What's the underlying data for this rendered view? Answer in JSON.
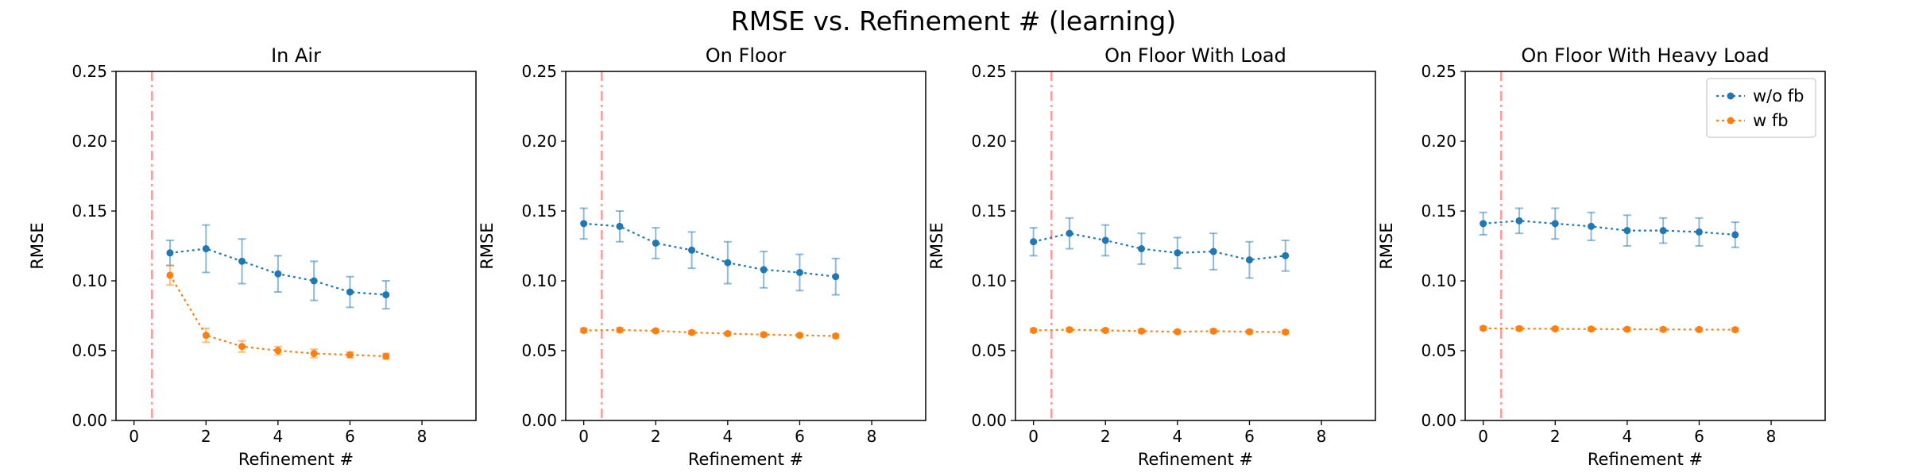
{
  "figure": {
    "title": "RMSE vs. Refinement # (learning)"
  },
  "colors": {
    "series": [
      "#1f77b4",
      "#ff7f0e"
    ],
    "vline": "#ff9999",
    "axes": "#000000"
  },
  "chart_data": [
    {
      "type": "line",
      "title": "In Air",
      "xlabel": "Refinement #",
      "ylabel": "RMSE",
      "xlim": [
        -0.5,
        9.5
      ],
      "ylim": [
        0,
        0.25
      ],
      "xticks": [
        0,
        2,
        4,
        6,
        8
      ],
      "yticks": [
        0.0,
        0.05,
        0.1,
        0.15,
        0.2,
        0.25
      ],
      "ytick_labels": [
        "0.00",
        "0.05",
        "0.10",
        "0.15",
        "0.20",
        "0.25"
      ],
      "vline_x": 0.5,
      "legend": false,
      "series": [
        {
          "name": "w/o fb",
          "x": [
            1,
            2,
            3,
            4,
            5,
            6,
            7
          ],
          "y": [
            0.12,
            0.123,
            0.114,
            0.105,
            0.1,
            0.092,
            0.09
          ],
          "err": [
            0.009,
            0.017,
            0.016,
            0.013,
            0.014,
            0.011,
            0.01
          ]
        },
        {
          "name": "w fb",
          "x": [
            1,
            2,
            3,
            4,
            5,
            6,
            7
          ],
          "y": [
            0.104,
            0.061,
            0.053,
            0.05,
            0.048,
            0.047,
            0.046
          ],
          "err": [
            0.007,
            0.005,
            0.004,
            0.003,
            0.003,
            0.002,
            0.002
          ]
        }
      ]
    },
    {
      "type": "line",
      "title": "On Floor",
      "xlabel": "Refinement #",
      "ylabel": "RMSE",
      "xlim": [
        -0.5,
        9.5
      ],
      "ylim": [
        0,
        0.25
      ],
      "xticks": [
        0,
        2,
        4,
        6,
        8
      ],
      "yticks": [
        0.0,
        0.05,
        0.1,
        0.15,
        0.2,
        0.25
      ],
      "ytick_labels": [
        "0.00",
        "0.05",
        "0.10",
        "0.15",
        "0.20",
        "0.25"
      ],
      "vline_x": 0.5,
      "legend": false,
      "series": [
        {
          "name": "w/o fb",
          "x": [
            0,
            1,
            2,
            3,
            4,
            5,
            6,
            7
          ],
          "y": [
            0.141,
            0.139,
            0.127,
            0.122,
            0.113,
            0.108,
            0.106,
            0.103
          ],
          "err": [
            0.011,
            0.011,
            0.011,
            0.013,
            0.015,
            0.013,
            0.013,
            0.013
          ]
        },
        {
          "name": "w fb",
          "x": [
            0,
            1,
            2,
            3,
            4,
            5,
            6,
            7
          ],
          "y": [
            0.0645,
            0.0648,
            0.0642,
            0.063,
            0.0622,
            0.0615,
            0.061,
            0.0605
          ],
          "err": [
            0.0015,
            0.0015,
            0.0012,
            0.0012,
            0.0012,
            0.0012,
            0.0012,
            0.0012
          ]
        }
      ]
    },
    {
      "type": "line",
      "title": "On Floor With Load",
      "xlabel": "Refinement #",
      "ylabel": "RMSE",
      "xlim": [
        -0.5,
        9.5
      ],
      "ylim": [
        0,
        0.25
      ],
      "xticks": [
        0,
        2,
        4,
        6,
        8
      ],
      "yticks": [
        0.0,
        0.05,
        0.1,
        0.15,
        0.2,
        0.25
      ],
      "ytick_labels": [
        "0.00",
        "0.05",
        "0.10",
        "0.15",
        "0.20",
        "0.25"
      ],
      "vline_x": 0.5,
      "legend": false,
      "series": [
        {
          "name": "w/o fb",
          "x": [
            0,
            1,
            2,
            3,
            4,
            5,
            6,
            7
          ],
          "y": [
            0.128,
            0.134,
            0.129,
            0.123,
            0.12,
            0.121,
            0.115,
            0.118
          ],
          "err": [
            0.01,
            0.011,
            0.011,
            0.011,
            0.011,
            0.013,
            0.013,
            0.011
          ]
        },
        {
          "name": "w fb",
          "x": [
            0,
            1,
            2,
            3,
            4,
            5,
            6,
            7
          ],
          "y": [
            0.0645,
            0.065,
            0.0645,
            0.064,
            0.0635,
            0.064,
            0.0635,
            0.0633
          ],
          "err": [
            0.0012,
            0.0012,
            0.0012,
            0.0012,
            0.0012,
            0.0012,
            0.0012,
            0.0012
          ]
        }
      ]
    },
    {
      "type": "line",
      "title": "On Floor With Heavy Load",
      "xlabel": "Refinement #",
      "ylabel": "RMSE",
      "xlim": [
        -0.5,
        9.5
      ],
      "ylim": [
        0,
        0.25
      ],
      "xticks": [
        0,
        2,
        4,
        6,
        8
      ],
      "yticks": [
        0.0,
        0.05,
        0.1,
        0.15,
        0.2,
        0.25
      ],
      "ytick_labels": [
        "0.00",
        "0.05",
        "0.10",
        "0.15",
        "0.20",
        "0.25"
      ],
      "vline_x": 0.5,
      "legend": true,
      "legend_loc": "upper right",
      "series": [
        {
          "name": "w/o fb",
          "x": [
            0,
            1,
            2,
            3,
            4,
            5,
            6,
            7
          ],
          "y": [
            0.141,
            0.143,
            0.141,
            0.139,
            0.136,
            0.136,
            0.135,
            0.133
          ],
          "err": [
            0.008,
            0.009,
            0.011,
            0.01,
            0.011,
            0.009,
            0.01,
            0.009
          ]
        },
        {
          "name": "w fb",
          "x": [
            0,
            1,
            2,
            3,
            4,
            5,
            6,
            7
          ],
          "y": [
            0.066,
            0.0658,
            0.0656,
            0.0655,
            0.0653,
            0.0652,
            0.0651,
            0.065
          ],
          "err": [
            0.0012,
            0.0012,
            0.0012,
            0.0012,
            0.0012,
            0.0012,
            0.0012,
            0.0012
          ]
        }
      ]
    }
  ]
}
